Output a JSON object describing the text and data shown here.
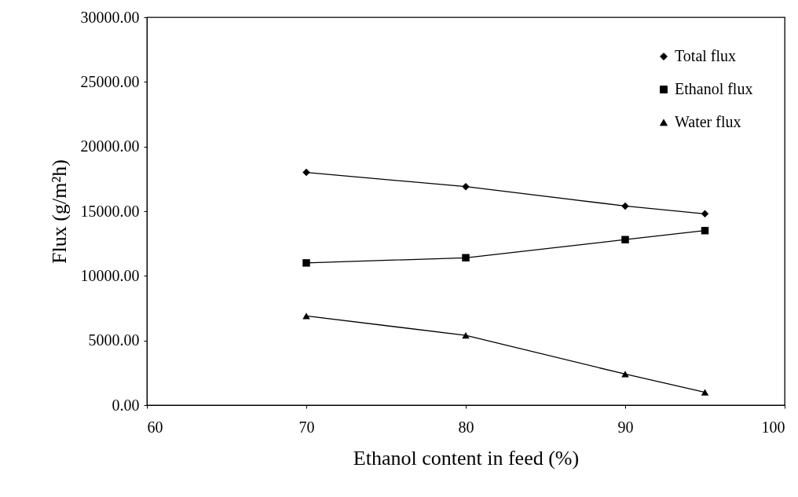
{
  "chart_data": {
    "type": "line",
    "xlabel": "Ethanol content in feed (%)",
    "ylabel": "Flux (g/m²h)",
    "x": [
      70,
      80,
      90,
      95
    ],
    "series": [
      {
        "name": "Total flux",
        "color": "#000000",
        "marker": "diamond",
        "values": [
          18000,
          16900,
          15400,
          14800
        ]
      },
      {
        "name": "Ethanol flux",
        "color": "#000000",
        "marker": "square",
        "values": [
          11000,
          11400,
          12800,
          13500
        ]
      },
      {
        "name": "Water flux",
        "color": "#000000",
        "marker": "triangle",
        "values": [
          6900,
          5400,
          2400,
          1000
        ]
      }
    ],
    "xlim": [
      60,
      100
    ],
    "xticks": [
      60,
      70,
      80,
      90,
      100
    ],
    "ylim": [
      0,
      30000
    ],
    "yticks": [
      {
        "value": 0,
        "label": "0.00"
      },
      {
        "value": 5000,
        "label": "5000.00"
      },
      {
        "value": 10000,
        "label": "10000.00"
      },
      {
        "value": 15000,
        "label": "15000.00"
      },
      {
        "value": 20000,
        "label": "20000.00"
      },
      {
        "value": 25000,
        "label": "25000.00"
      },
      {
        "value": 30000,
        "label": "30000.00"
      }
    ],
    "grid": false,
    "legend": "top right",
    "line_style": "solid"
  }
}
